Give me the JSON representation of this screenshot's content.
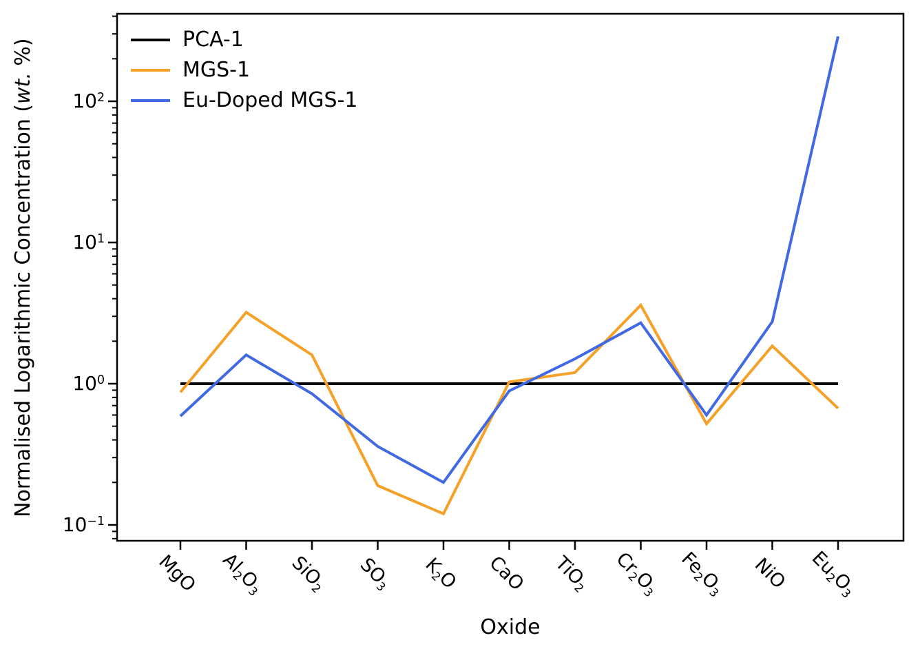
{
  "figure": {
    "background": "#ffffff",
    "text_color": "#000000"
  },
  "chart_data": {
    "type": "line",
    "title": "",
    "xlabel": "Oxide",
    "ylabel": "Normalised Logarithmic Concentration (wt. %)",
    "ylabel_pre": "Normalised Logarithmic Concentration (",
    "ylabel_italic": "wt.",
    "ylabel_post": " %)",
    "yscale": "log",
    "ylim": [
      0.077,
      420
    ],
    "ytick_exponents": [
      -1,
      0,
      1,
      2
    ],
    "grid": false,
    "legend_position": "upper-left",
    "legend_frame": false,
    "categories": [
      "MgO",
      "Al2O3",
      "SiO2",
      "SO3",
      "K2O",
      "CaO",
      "TiO2",
      "Cr2O3",
      "Fe2O3",
      "NiO",
      "Eu2O3"
    ],
    "series": [
      {
        "name": "PCA-1",
        "color": "#000000",
        "values": [
          1,
          1,
          1,
          1,
          1,
          1,
          1,
          1,
          1,
          1,
          1
        ]
      },
      {
        "name": "MGS-1",
        "color": "#F5A127",
        "values": [
          0.87,
          3.2,
          1.6,
          0.19,
          0.12,
          1.03,
          1.2,
          3.6,
          0.52,
          1.85,
          0.67
        ]
      },
      {
        "name": "Eu-Doped MGS-1",
        "color": "#4169E1",
        "values": [
          0.59,
          1.6,
          0.85,
          0.36,
          0.2,
          0.89,
          1.5,
          2.7,
          0.6,
          2.75,
          288
        ]
      }
    ]
  }
}
